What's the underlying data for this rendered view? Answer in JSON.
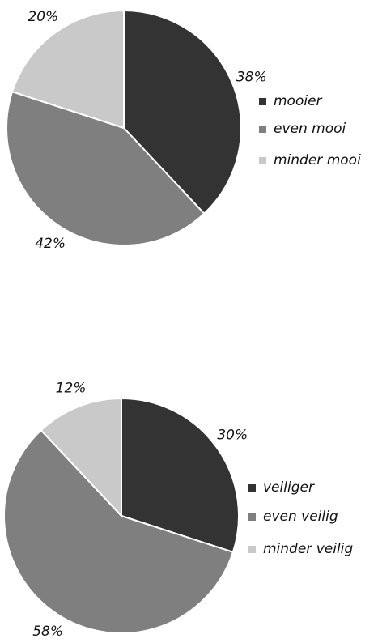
{
  "chart_data": [
    {
      "type": "pie",
      "categories": [
        "mooier",
        "even mooi",
        "minder mooi"
      ],
      "values": [
        38,
        42,
        20
      ],
      "value_labels": [
        "38%",
        "42%",
        "20%"
      ],
      "colors": [
        "#333333",
        "#7f7f7f",
        "#c9c9c9"
      ],
      "legend": "right"
    },
    {
      "type": "pie",
      "categories": [
        "veiliger",
        "even veilig",
        "minder veilig"
      ],
      "values": [
        30,
        58,
        12
      ],
      "value_labels": [
        "30%",
        "58%",
        "12%"
      ],
      "colors": [
        "#333333",
        "#7f7f7f",
        "#c9c9c9"
      ],
      "legend": "right"
    }
  ]
}
